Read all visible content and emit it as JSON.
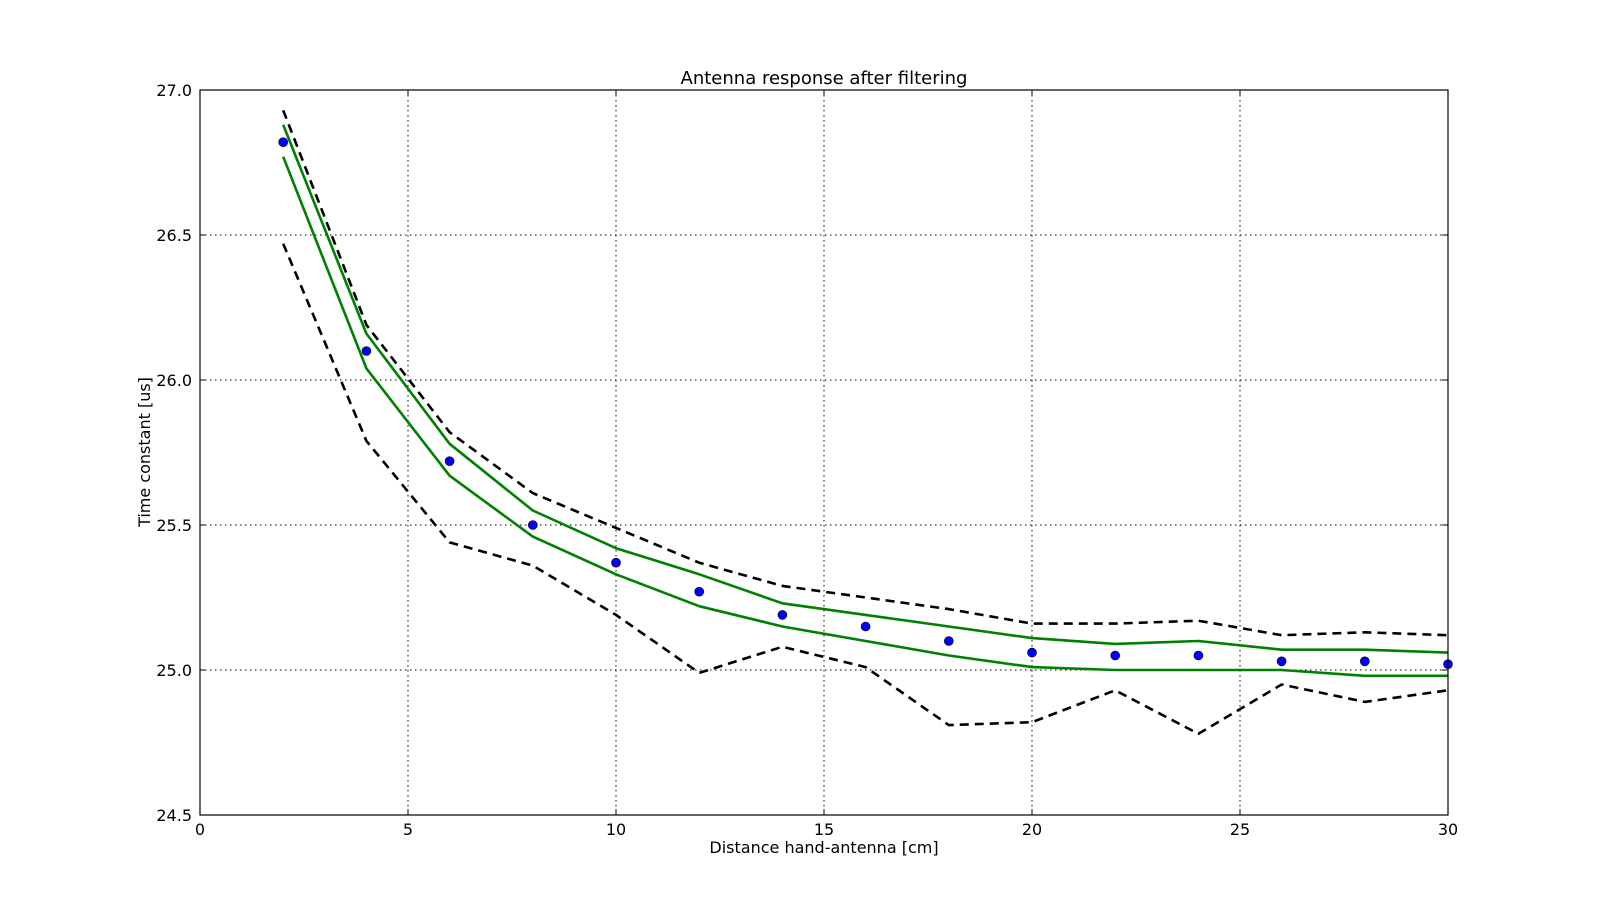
{
  "chart_data": {
    "type": "line",
    "title": "Antenna response after filtering",
    "xlabel": "Distance hand-antenna [cm]",
    "ylabel": "Time constant [us]",
    "xlim": [
      0,
      30
    ],
    "ylim": [
      24.5,
      27.0
    ],
    "xticks": [
      0,
      5,
      10,
      15,
      20,
      25,
      30
    ],
    "xtick_labels": [
      "0",
      "5",
      "10",
      "15",
      "20",
      "25",
      "30"
    ],
    "yticks": [
      24.5,
      25.0,
      25.5,
      26.0,
      26.5,
      27.0
    ],
    "ytick_labels": [
      "24.5",
      "25.0",
      "25.5",
      "26.0",
      "26.5",
      "27.0"
    ],
    "grid": true,
    "x": [
      2,
      4,
      6,
      8,
      10,
      12,
      14,
      16,
      18,
      20,
      22,
      24,
      26,
      28,
      30
    ],
    "series": [
      {
        "kind": "points",
        "color": "#0000ff",
        "values": [
          26.82,
          26.1,
          25.72,
          25.5,
          25.37,
          25.27,
          25.19,
          25.15,
          25.1,
          25.06,
          25.05,
          25.05,
          25.03,
          25.03,
          25.02
        ]
      },
      {
        "kind": "solid",
        "color": "#008000",
        "values": [
          26.88,
          26.16,
          25.78,
          25.55,
          25.42,
          25.33,
          25.23,
          25.19,
          25.15,
          25.11,
          25.09,
          25.1,
          25.07,
          25.07,
          25.06
        ]
      },
      {
        "kind": "solid",
        "color": "#008000",
        "values": [
          26.77,
          26.04,
          25.67,
          25.46,
          25.33,
          25.22,
          25.15,
          25.1,
          25.05,
          25.01,
          25.0,
          25.0,
          25.0,
          24.98,
          24.98
        ]
      },
      {
        "kind": "dashed",
        "color": "#000000",
        "values": [
          26.93,
          26.19,
          25.82,
          25.61,
          25.49,
          25.37,
          25.29,
          25.25,
          25.21,
          25.16,
          25.16,
          25.17,
          25.12,
          25.13,
          25.12
        ]
      },
      {
        "kind": "dashed",
        "color": "#000000",
        "values": [
          26.47,
          25.79,
          25.44,
          25.36,
          25.19,
          24.99,
          25.08,
          25.01,
          24.81,
          24.82,
          24.93,
          24.78,
          24.95,
          24.89,
          24.93
        ]
      }
    ]
  }
}
